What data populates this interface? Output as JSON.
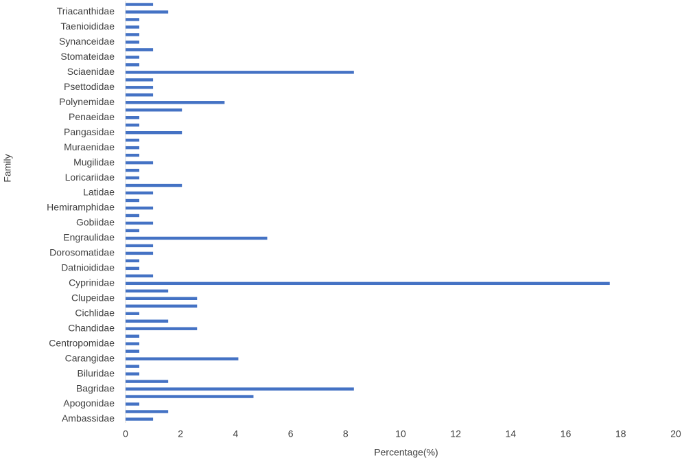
{
  "chart_data": {
    "type": "barh",
    "x_label": "Percentage(%)",
    "y_label": "Family",
    "categories": [
      "Ambassidae",
      null,
      "Apogonidae",
      null,
      "Bagridae",
      null,
      "Biluridae",
      null,
      "Carangidae",
      null,
      "Centropomidae",
      null,
      "Chandidae",
      null,
      "Cichlidae",
      null,
      "Clupeidae",
      null,
      "Cyprinidae",
      null,
      "Datnioididae",
      null,
      "Dorosomatidae",
      null,
      "Engraulidae",
      null,
      "Gobiidae",
      null,
      "Hemiramphidae",
      null,
      "Latidae",
      null,
      "Loricariidae",
      null,
      "Mugilidae",
      null,
      "Muraenidae",
      null,
      "Pangasidae",
      null,
      "Penaeidae",
      null,
      "Polynemidae",
      null,
      "Psettodidae",
      null,
      "Sciaenidae",
      null,
      "Stomateidae",
      null,
      "Synanceidae",
      null,
      "Taenioididae",
      null,
      "Triacanthidae",
      null
    ],
    "values": [
      1.0,
      1.55,
      0.5,
      4.65,
      8.3,
      1.55,
      0.5,
      0.5,
      4.1,
      0.5,
      0.5,
      0.5,
      2.6,
      1.55,
      0.5,
      2.6,
      2.6,
      1.55,
      17.6,
      1.0,
      0.5,
      0.5,
      1.0,
      1.0,
      5.15,
      0.5,
      1.0,
      0.5,
      1.0,
      0.5,
      1.0,
      2.05,
      0.5,
      0.5,
      1.0,
      0.5,
      0.5,
      0.5,
      2.05,
      0.5,
      0.5,
      2.05,
      3.6,
      1.0,
      1.0,
      1.0,
      8.3,
      0.5,
      0.5,
      1.0,
      0.5,
      0.5,
      0.5,
      0.5,
      1.55,
      1.0
    ],
    "color": "#4472c4",
    "xlim": [
      0,
      20
    ],
    "xticks": [
      0,
      2,
      4,
      6,
      8,
      10,
      12,
      14,
      16,
      18,
      20
    ],
    "grid": false
  }
}
